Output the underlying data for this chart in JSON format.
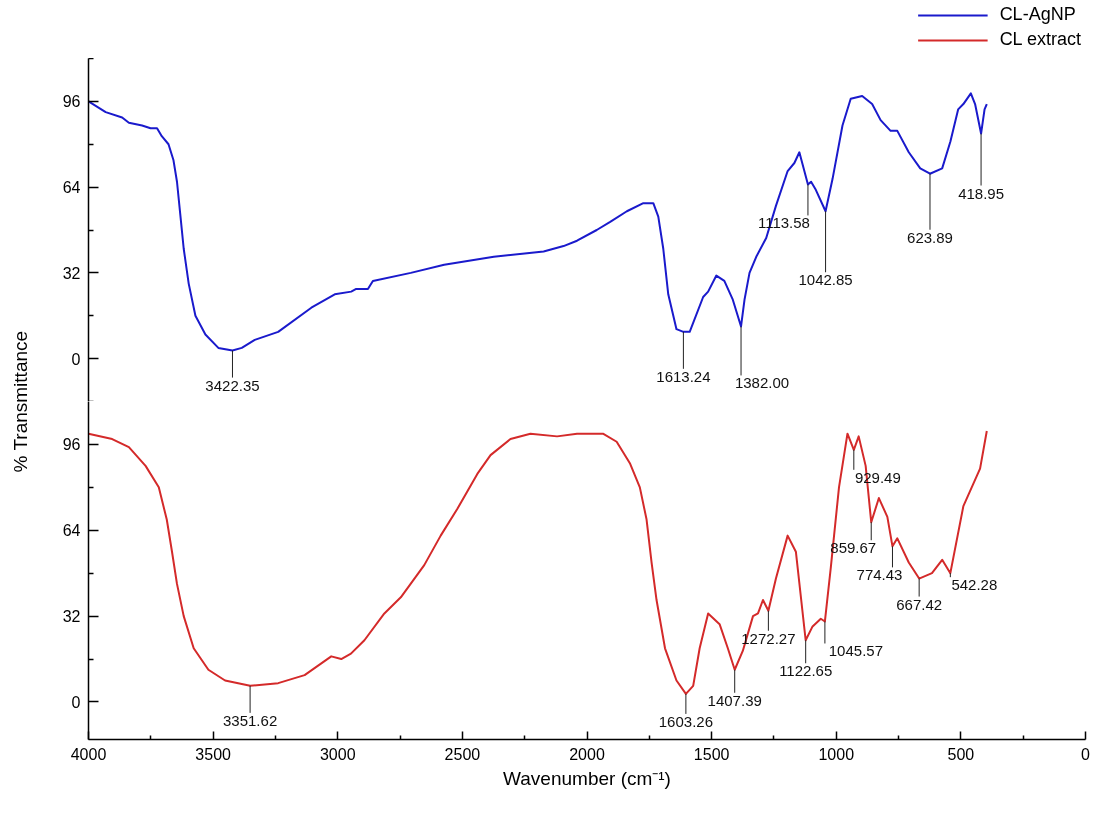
{
  "chart_data": [
    {
      "type": "line",
      "xlim": [
        4000,
        0
      ],
      "ylim": [
        -16,
        112
      ],
      "tick_labels": "y",
      "legend": "top right",
      "ylabel": "% Transmittance",
      "yticks": [
        {
          "value": -16,
          "label": null
        },
        0,
        {
          "value": 16,
          "label": null
        },
        32,
        {
          "value": 48,
          "label": null
        },
        64,
        {
          "value": 80,
          "label": null
        },
        96,
        {
          "value": 112,
          "label": null
        }
      ],
      "x": [
        4000,
        3931,
        3865,
        3838,
        3785,
        3751,
        3725,
        3706,
        3679,
        3659,
        3645,
        3632,
        3618,
        3598,
        3571,
        3531,
        3479,
        3422.35,
        3385,
        3333,
        3239,
        3106,
        3012,
        2946,
        2926,
        2879,
        2859,
        2707,
        2573,
        2374,
        2174,
        2094,
        2040,
        1961,
        1907,
        1840,
        1774,
        1734,
        1714,
        1694,
        1674,
        1641,
        1613.24,
        1588,
        1534,
        1514,
        1481,
        1449,
        1415,
        1382,
        1368,
        1348,
        1321,
        1281,
        1242,
        1195,
        1168,
        1148,
        1113.58,
        1101,
        1082,
        1042.85,
        1015,
        975,
        942,
        896,
        856,
        822,
        782,
        755,
        709,
        663,
        623.89,
        575,
        542,
        511,
        490,
        460,
        443,
        418.95,
        405,
        396
      ],
      "series": [
        {
          "name": "CL-AgNP",
          "color": "#1a1acc",
          "values": [
            96,
            92,
            90,
            88,
            87,
            86,
            86,
            83,
            80,
            74,
            66,
            54,
            41,
            28,
            16,
            9,
            4,
            3,
            4,
            7,
            10,
            19,
            24,
            25,
            26,
            26,
            29,
            32,
            35,
            38,
            40,
            42,
            44,
            48,
            51,
            55,
            58,
            58,
            53,
            41,
            24,
            11,
            10,
            10,
            23,
            25,
            31,
            29,
            22,
            12,
            22,
            32,
            38,
            45,
            57,
            70,
            73,
            77,
            65,
            66,
            63,
            55,
            67,
            87,
            97,
            98,
            95,
            89,
            85,
            85,
            77,
            71,
            69,
            71,
            81,
            93,
            95,
            99,
            95,
            84,
            93,
            95
          ]
        }
      ],
      "annotations": [
        {
          "text": "3422.35",
          "x": 3422.35,
          "y": 3
        },
        {
          "text": "1613.24",
          "x": 1613.24,
          "y": 10
        },
        {
          "text": "1382.00",
          "x": 1382,
          "y": 12
        },
        {
          "text": "1113.58",
          "x": 1113.58,
          "y": 65
        },
        {
          "text": "1042.85",
          "x": 1042.85,
          "y": 55
        },
        {
          "text": "623.89",
          "x": 623.89,
          "y": 69
        },
        {
          "text": "418.95",
          "x": 418.95,
          "y": 84
        }
      ]
    },
    {
      "type": "line",
      "xlim": [
        4000,
        0
      ],
      "ylim": [
        -14,
        112
      ],
      "legend": "top right",
      "xlabel": "Wavenumber (cm⁻¹)",
      "xticks": [
        4000,
        {
          "value": 3750,
          "label": null
        },
        3500,
        {
          "value": 3250,
          "label": null
        },
        3000,
        {
          "value": 2750,
          "label": null
        },
        2500,
        {
          "value": 2250,
          "label": null
        },
        2000,
        {
          "value": 1750,
          "label": null
        },
        1500,
        {
          "value": 1250,
          "label": null
        },
        1000,
        {
          "value": 750,
          "label": null
        },
        500,
        {
          "value": 250,
          "label": null
        },
        0
      ],
      "yticks": [
        0,
        {
          "value": 16,
          "label": null
        },
        32,
        {
          "value": 48,
          "label": null
        },
        64,
        {
          "value": 80,
          "label": null
        },
        96
      ],
      "x": [
        4000,
        3905,
        3838,
        3771,
        3718,
        3686,
        3665,
        3645,
        3618,
        3578,
        3519,
        3452,
        3351.62,
        3239,
        3133,
        3026,
        2986,
        2947,
        2893,
        2813,
        2747,
        2653,
        2587,
        2520,
        2440,
        2387,
        2307,
        2227,
        2120,
        2040,
        1936,
        1881,
        1828,
        1788,
        1761,
        1741,
        1721,
        1687,
        1641,
        1603.26,
        1574,
        1548,
        1514,
        1468,
        1435,
        1407.39,
        1375,
        1334,
        1314,
        1294,
        1272.27,
        1242,
        1195,
        1162,
        1122.65,
        1096,
        1062,
        1045.57,
        1022,
        989,
        955,
        929.49,
        910,
        882,
        859.67,
        829,
        795,
        774.43,
        755,
        709,
        667.42,
        616,
        575,
        542.28,
        490,
        423,
        396
      ],
      "series": [
        {
          "name": "CL extract",
          "color": "#d42a2a",
          "values": [
            100,
            98,
            95,
            88,
            80,
            68,
            56,
            44,
            32,
            20,
            12,
            8,
            6,
            7,
            10,
            17,
            16,
            18,
            23,
            33,
            39,
            51,
            62,
            72,
            85,
            92,
            98,
            100,
            99,
            100,
            100,
            97,
            89,
            80,
            68,
            52,
            38,
            20,
            8,
            3,
            6,
            20,
            33,
            29,
            20,
            12,
            19,
            32,
            33,
            38,
            34,
            46,
            62,
            56,
            23,
            28,
            31,
            30,
            50,
            80,
            100,
            94,
            99,
            88,
            67,
            76,
            69,
            58,
            61,
            52,
            46,
            48,
            53,
            48,
            73,
            87,
            101
          ]
        }
      ],
      "annotations": [
        {
          "text": "3351.62",
          "x": 3351.62,
          "y": 6
        },
        {
          "text": "1603.26",
          "x": 1603.26,
          "y": 3
        },
        {
          "text": "1407.39",
          "x": 1407.39,
          "y": 12
        },
        {
          "text": "1272.27",
          "x": 1272.27,
          "y": 34
        },
        {
          "text": "1122.65",
          "x": 1122.65,
          "y": 23
        },
        {
          "text": "1045.57",
          "x": 1045.57,
          "y": 30
        },
        {
          "text": "929.49",
          "x": 929.49,
          "y": 94
        },
        {
          "text": "859.67",
          "x": 859.67,
          "y": 67
        },
        {
          "text": "774.43",
          "x": 774.43,
          "y": 58
        },
        {
          "text": "667.42",
          "x": 667.42,
          "y": 46
        },
        {
          "text": "542.28",
          "x": 542.28,
          "y": 48
        }
      ]
    }
  ]
}
